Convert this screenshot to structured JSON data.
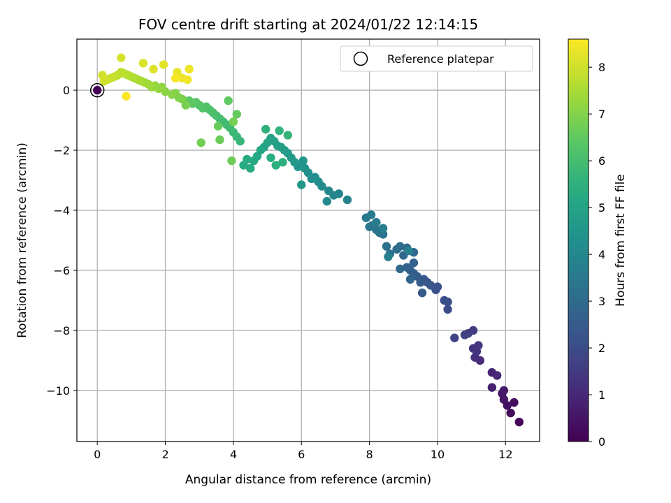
{
  "chart_data": {
    "type": "scatter",
    "title": "FOV centre drift starting at 2024/01/22 12:14:15",
    "xlabel": "Angular distance from reference (arcmin)",
    "ylabel": "Rotation from reference (arcmin)",
    "colorbar_label": "Hours from first FF file",
    "xlim": [
      -0.6,
      13.0
    ],
    "ylim": [
      -11.7,
      1.7
    ],
    "clim": [
      0,
      8.6
    ],
    "xticks": [
      0,
      2,
      4,
      6,
      8,
      10,
      12
    ],
    "yticks": [
      0,
      -2,
      -4,
      -6,
      -8,
      -10
    ],
    "cticks": [
      0,
      1,
      2,
      3,
      4,
      5,
      6,
      7,
      8
    ],
    "colormap": "viridis",
    "grid": true,
    "legend": {
      "position": "top-right",
      "entries": [
        "Reference platepar"
      ]
    },
    "reference_point": {
      "x": 0,
      "y": 0
    },
    "points": [
      [
        12.4,
        -11.05,
        0.1
      ],
      [
        12.25,
        -10.4,
        0.3
      ],
      [
        12.15,
        -10.75,
        0.25
      ],
      [
        12.05,
        -10.5,
        0.4
      ],
      [
        11.95,
        -10.3,
        0.5
      ],
      [
        11.9,
        -10.1,
        0.55
      ],
      [
        11.95,
        -10.0,
        0.6
      ],
      [
        11.6,
        -9.9,
        0.8
      ],
      [
        11.6,
        -9.4,
        0.9
      ],
      [
        11.75,
        -9.5,
        0.95
      ],
      [
        11.25,
        -9.0,
        1.1
      ],
      [
        11.1,
        -8.9,
        1.2
      ],
      [
        11.15,
        -8.7,
        1.3
      ],
      [
        11.05,
        -8.6,
        1.35
      ],
      [
        11.2,
        -8.5,
        1.4
      ],
      [
        11.05,
        -8.0,
        1.5
      ],
      [
        10.9,
        -8.1,
        1.6
      ],
      [
        10.8,
        -8.15,
        1.7
      ],
      [
        10.5,
        -8.25,
        1.75
      ],
      [
        10.3,
        -7.3,
        2.0
      ],
      [
        10.3,
        -7.05,
        2.05
      ],
      [
        10.2,
        -7.0,
        2.1
      ],
      [
        10.0,
        -6.55,
        2.2
      ],
      [
        9.95,
        -6.65,
        2.25
      ],
      [
        9.8,
        -6.5,
        2.3
      ],
      [
        9.7,
        -6.4,
        2.35
      ],
      [
        9.6,
        -6.3,
        2.4
      ],
      [
        9.5,
        -6.4,
        2.45
      ],
      [
        9.55,
        -6.75,
        2.5
      ],
      [
        9.4,
        -6.2,
        2.55
      ],
      [
        9.3,
        -6.1,
        2.6
      ],
      [
        9.2,
        -6.0,
        2.65
      ],
      [
        9.3,
        -5.75,
        2.7
      ],
      [
        9.1,
        -5.9,
        2.75
      ],
      [
        9.2,
        -6.3,
        2.8
      ],
      [
        8.9,
        -5.95,
        2.85
      ],
      [
        9.0,
        -5.5,
        2.9
      ],
      [
        9.3,
        -5.4,
        2.95
      ],
      [
        9.1,
        -5.25,
        3.0
      ],
      [
        8.9,
        -5.2,
        3.05
      ],
      [
        8.8,
        -5.3,
        3.1
      ],
      [
        8.6,
        -5.45,
        3.15
      ],
      [
        8.5,
        -5.2,
        3.2
      ],
      [
        8.4,
        -4.8,
        3.25
      ],
      [
        8.3,
        -4.75,
        3.3
      ],
      [
        8.2,
        -4.65,
        3.35
      ],
      [
        8.1,
        -4.5,
        3.4
      ],
      [
        8.0,
        -4.55,
        3.45
      ],
      [
        7.9,
        -4.25,
        3.5
      ],
      [
        8.05,
        -4.15,
        3.55
      ],
      [
        8.2,
        -4.4,
        3.6
      ],
      [
        8.4,
        -4.6,
        3.65
      ],
      [
        8.55,
        -5.55,
        3.7
      ],
      [
        9.15,
        -5.35,
        3.75
      ],
      [
        7.35,
        -3.65,
        3.85
      ],
      [
        7.1,
        -3.45,
        3.9
      ],
      [
        6.95,
        -3.5,
        3.95
      ],
      [
        6.8,
        -3.35,
        4.0
      ],
      [
        6.75,
        -3.7,
        4.05
      ],
      [
        6.6,
        -3.2,
        4.1
      ],
      [
        6.5,
        -3.05,
        4.15
      ],
      [
        6.4,
        -2.9,
        4.2
      ],
      [
        6.3,
        -2.95,
        4.25
      ],
      [
        6.2,
        -2.75,
        4.3
      ],
      [
        6.1,
        -2.6,
        4.35
      ],
      [
        6.0,
        -2.5,
        4.4
      ],
      [
        5.9,
        -2.55,
        4.45
      ],
      [
        6.05,
        -2.35,
        4.5
      ],
      [
        5.8,
        -2.4,
        4.55
      ],
      [
        6.0,
        -3.15,
        4.6
      ],
      [
        5.7,
        -2.25,
        4.65
      ],
      [
        5.6,
        -2.1,
        4.7
      ],
      [
        5.5,
        -2.0,
        4.75
      ],
      [
        5.4,
        -1.9,
        4.8
      ],
      [
        5.3,
        -1.85,
        4.85
      ],
      [
        5.2,
        -1.7,
        4.9
      ],
      [
        5.1,
        -1.6,
        4.95
      ],
      [
        5.0,
        -1.75,
        5.0
      ],
      [
        4.9,
        -1.9,
        5.05
      ],
      [
        4.8,
        -2.0,
        5.1
      ],
      [
        4.7,
        -2.2,
        5.15
      ],
      [
        4.6,
        -2.35,
        5.2
      ],
      [
        4.5,
        -2.6,
        5.25
      ],
      [
        4.4,
        -2.3,
        5.3
      ],
      [
        4.3,
        -2.5,
        5.35
      ],
      [
        5.1,
        -2.25,
        5.4
      ],
      [
        5.25,
        -2.5,
        5.45
      ],
      [
        5.45,
        -2.4,
        5.5
      ],
      [
        4.95,
        -1.3,
        5.55
      ],
      [
        5.35,
        -1.35,
        5.6
      ],
      [
        5.6,
        -1.5,
        5.65
      ],
      [
        4.2,
        -1.7,
        5.7
      ],
      [
        4.1,
        -1.55,
        5.75
      ],
      [
        4.0,
        -1.4,
        5.8
      ],
      [
        3.9,
        -1.25,
        5.85
      ],
      [
        3.8,
        -1.15,
        5.9
      ],
      [
        3.7,
        -1.05,
        5.95
      ],
      [
        3.6,
        -0.95,
        6.0
      ],
      [
        3.5,
        -0.85,
        6.05
      ],
      [
        3.4,
        -0.75,
        6.1
      ],
      [
        3.3,
        -0.65,
        6.15
      ],
      [
        3.2,
        -0.55,
        6.2
      ],
      [
        3.1,
        -0.6,
        6.25
      ],
      [
        3.0,
        -0.5,
        6.3
      ],
      [
        2.9,
        -0.4,
        6.35
      ],
      [
        2.8,
        -0.45,
        6.4
      ],
      [
        2.7,
        -0.35,
        6.45
      ],
      [
        3.85,
        -0.35,
        6.5
      ],
      [
        4.1,
        -0.8,
        6.55
      ],
      [
        3.55,
        -1.2,
        6.6
      ],
      [
        3.6,
        -1.65,
        6.65
      ],
      [
        3.95,
        -2.35,
        6.7
      ],
      [
        3.05,
        -1.75,
        6.75
      ],
      [
        4.0,
        -1.05,
        6.8
      ],
      [
        2.6,
        -0.5,
        6.85
      ],
      [
        2.5,
        -0.3,
        6.9
      ],
      [
        2.4,
        -0.25,
        6.95
      ],
      [
        2.3,
        -0.1,
        7.0
      ],
      [
        2.2,
        -0.15,
        7.05
      ],
      [
        2.0,
        -0.05,
        7.1
      ],
      [
        1.9,
        0.1,
        7.15
      ],
      [
        1.8,
        0.05,
        7.2
      ],
      [
        1.7,
        0.15,
        7.25
      ],
      [
        1.6,
        0.1,
        7.3
      ],
      [
        1.5,
        0.2,
        7.35
      ],
      [
        1.4,
        0.25,
        7.4
      ],
      [
        1.3,
        0.3,
        7.45
      ],
      [
        1.2,
        0.35,
        7.5
      ],
      [
        1.1,
        0.4,
        7.55
      ],
      [
        1.0,
        0.45,
        7.6
      ],
      [
        0.9,
        0.5,
        7.65
      ],
      [
        0.8,
        0.55,
        7.7
      ],
      [
        0.7,
        0.6,
        7.75
      ],
      [
        0.6,
        0.5,
        7.8
      ],
      [
        0.5,
        0.45,
        7.85
      ],
      [
        0.4,
        0.4,
        7.9
      ],
      [
        0.3,
        0.35,
        7.95
      ],
      [
        0.2,
        0.3,
        8.0
      ],
      [
        0.15,
        0.5,
        8.05
      ],
      [
        0.7,
        1.08,
        8.1
      ],
      [
        1.35,
        0.9,
        8.15
      ],
      [
        1.65,
        0.7,
        8.2
      ],
      [
        1.95,
        0.85,
        8.25
      ],
      [
        2.35,
        0.6,
        8.3
      ],
      [
        2.5,
        0.4,
        8.35
      ],
      [
        2.7,
        0.7,
        8.4
      ],
      [
        2.65,
        0.35,
        8.45
      ],
      [
        2.3,
        0.4,
        8.5
      ],
      [
        0.85,
        -0.2,
        8.55
      ]
    ]
  }
}
